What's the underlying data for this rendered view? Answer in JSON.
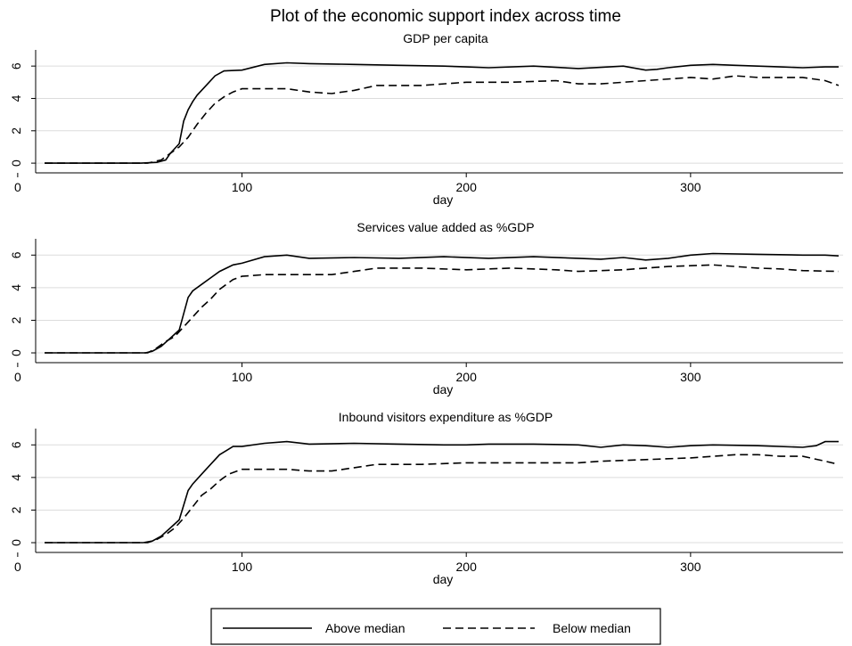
{
  "figure": {
    "title": "Plot of the economic support index across time"
  },
  "chart_data": [
    {
      "type": "line",
      "title": "GDP per capita",
      "xlabel": "day",
      "ylabel": "",
      "xlim": [
        8,
        368
      ],
      "ylim": [
        -0.6,
        7
      ],
      "xticks": [
        0,
        100,
        200,
        300
      ],
      "yticks": [
        0,
        2,
        4,
        6
      ],
      "grid": true,
      "series": [
        {
          "name": "Above median",
          "style": "solid",
          "x": [
            12,
            55,
            62,
            66,
            68,
            72,
            74,
            76,
            78,
            80,
            84,
            88,
            92,
            100,
            110,
            120,
            130,
            150,
            170,
            190,
            200,
            210,
            230,
            250,
            270,
            280,
            285,
            290,
            300,
            310,
            320,
            330,
            340,
            350,
            360,
            366
          ],
          "y": [
            0,
            0,
            0.05,
            0.2,
            0.6,
            1.2,
            2.6,
            3.3,
            3.8,
            4.2,
            4.8,
            5.4,
            5.7,
            5.75,
            6.1,
            6.2,
            6.15,
            6.1,
            6.05,
            6.0,
            5.95,
            5.9,
            6.0,
            5.85,
            6.0,
            5.75,
            5.8,
            5.9,
            6.05,
            6.1,
            6.05,
            6.0,
            5.95,
            5.9,
            5.95,
            5.95
          ]
        },
        {
          "name": "Below median",
          "style": "dashed",
          "x": [
            12,
            58,
            64,
            68,
            72,
            76,
            80,
            84,
            88,
            92,
            96,
            100,
            110,
            120,
            130,
            140,
            150,
            160,
            180,
            200,
            220,
            240,
            250,
            260,
            280,
            300,
            310,
            320,
            330,
            340,
            350,
            360,
            366
          ],
          "y": [
            0,
            0,
            0.2,
            0.6,
            1.0,
            1.6,
            2.4,
            3.1,
            3.7,
            4.1,
            4.4,
            4.6,
            4.6,
            4.6,
            4.4,
            4.3,
            4.5,
            4.8,
            4.8,
            5.0,
            5.0,
            5.1,
            4.9,
            4.9,
            5.1,
            5.3,
            5.2,
            5.4,
            5.3,
            5.3,
            5.3,
            5.1,
            4.8
          ]
        }
      ]
    },
    {
      "type": "line",
      "title": "Services value added as %GDP",
      "xlabel": "day",
      "ylabel": "",
      "xlim": [
        8,
        368
      ],
      "ylim": [
        -0.6,
        7
      ],
      "xticks": [
        0,
        100,
        200,
        300
      ],
      "yticks": [
        0,
        2,
        4,
        6
      ],
      "grid": true,
      "series": [
        {
          "name": "Above median",
          "style": "solid",
          "x": [
            12,
            57,
            60,
            64,
            68,
            72,
            74,
            76,
            78,
            82,
            86,
            90,
            96,
            100,
            110,
            120,
            130,
            150,
            170,
            190,
            210,
            230,
            250,
            260,
            270,
            280,
            290,
            300,
            310,
            330,
            350,
            360,
            366
          ],
          "y": [
            0,
            0,
            0.1,
            0.4,
            0.9,
            1.4,
            2.4,
            3.4,
            3.8,
            4.2,
            4.6,
            5.0,
            5.4,
            5.5,
            5.9,
            6.0,
            5.8,
            5.85,
            5.8,
            5.9,
            5.8,
            5.9,
            5.8,
            5.75,
            5.85,
            5.7,
            5.8,
            6.0,
            6.1,
            6.05,
            6.0,
            6.0,
            5.95
          ]
        },
        {
          "name": "Below median",
          "style": "dashed",
          "x": [
            12,
            58,
            62,
            66,
            70,
            74,
            78,
            82,
            86,
            90,
            96,
            100,
            110,
            130,
            140,
            150,
            160,
            180,
            200,
            220,
            240,
            250,
            270,
            280,
            290,
            300,
            310,
            320,
            330,
            340,
            350,
            366
          ],
          "y": [
            0,
            0,
            0.3,
            0.7,
            1.0,
            1.6,
            2.2,
            2.8,
            3.3,
            3.9,
            4.5,
            4.7,
            4.8,
            4.8,
            4.8,
            5.0,
            5.2,
            5.2,
            5.1,
            5.2,
            5.1,
            5.0,
            5.1,
            5.2,
            5.3,
            5.35,
            5.4,
            5.3,
            5.2,
            5.15,
            5.05,
            5.0
          ]
        }
      ]
    },
    {
      "type": "line",
      "title": "Inbound visitors expenditure as %GDP",
      "xlabel": "day",
      "ylabel": "",
      "xlim": [
        8,
        368
      ],
      "ylim": [
        -0.6,
        7
      ],
      "xticks": [
        0,
        100,
        200,
        300
      ],
      "yticks": [
        0,
        2,
        4,
        6
      ],
      "grid": true,
      "series": [
        {
          "name": "Above median",
          "style": "solid",
          "x": [
            12,
            56,
            60,
            64,
            68,
            72,
            74,
            76,
            78,
            82,
            86,
            90,
            96,
            100,
            110,
            120,
            130,
            150,
            170,
            190,
            200,
            210,
            230,
            250,
            260,
            270,
            280,
            290,
            300,
            310,
            330,
            350,
            356,
            360,
            366
          ],
          "y": [
            0,
            0,
            0.1,
            0.4,
            0.9,
            1.4,
            2.3,
            3.2,
            3.6,
            4.2,
            4.8,
            5.4,
            5.9,
            5.9,
            6.1,
            6.2,
            6.05,
            6.1,
            6.05,
            6.0,
            6.0,
            6.05,
            6.05,
            6.0,
            5.85,
            6.0,
            5.95,
            5.85,
            5.95,
            6.0,
            5.95,
            5.85,
            5.95,
            6.2,
            6.2
          ]
        },
        {
          "name": "Below median",
          "style": "dashed",
          "x": [
            12,
            58,
            62,
            66,
            70,
            74,
            78,
            82,
            86,
            90,
            94,
            100,
            110,
            120,
            130,
            140,
            150,
            160,
            180,
            200,
            220,
            240,
            250,
            260,
            280,
            300,
            310,
            320,
            330,
            340,
            350,
            360,
            366
          ],
          "y": [
            0,
            0,
            0.2,
            0.5,
            0.9,
            1.5,
            2.2,
            2.9,
            3.3,
            3.8,
            4.2,
            4.5,
            4.5,
            4.5,
            4.4,
            4.4,
            4.6,
            4.8,
            4.8,
            4.9,
            4.9,
            4.9,
            4.9,
            5.0,
            5.1,
            5.2,
            5.3,
            5.4,
            5.4,
            5.3,
            5.3,
            5.0,
            4.8
          ]
        }
      ]
    }
  ],
  "legend": {
    "position": "bottom",
    "items": [
      {
        "label": "Above median",
        "style": "solid"
      },
      {
        "label": "Below median",
        "style": "dashed"
      }
    ]
  }
}
